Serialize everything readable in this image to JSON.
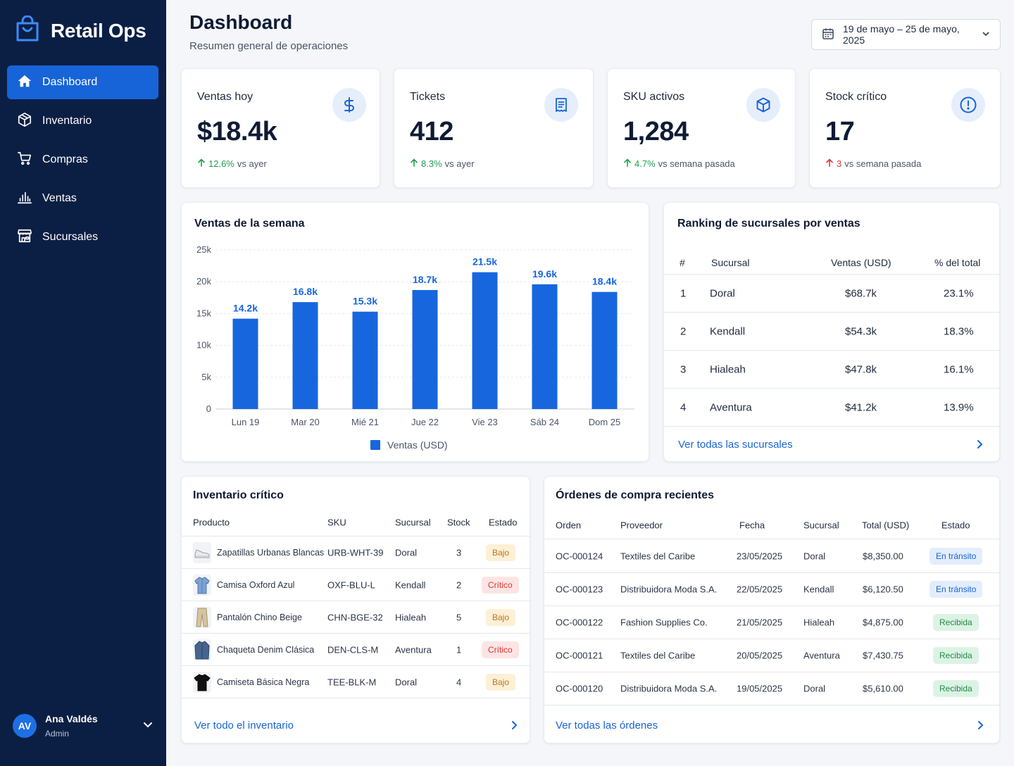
{
  "app": {
    "name": "Retail Ops"
  },
  "sidebar": {
    "items": [
      {
        "label": "Dashboard",
        "icon": "home-icon",
        "active": true
      },
      {
        "label": "Inventario",
        "icon": "box-icon",
        "active": false
      },
      {
        "label": "Compras",
        "icon": "cart-icon",
        "active": false
      },
      {
        "label": "Ventas",
        "icon": "bar-chart-icon",
        "active": false
      },
      {
        "label": "Sucursales",
        "icon": "store-icon",
        "active": false
      }
    ],
    "user": {
      "initials": "AV",
      "name": "Ana Valdés",
      "role": "Admin"
    }
  },
  "header": {
    "title": "Dashboard",
    "subtitle": "Resumen general de operaciones",
    "date_range": "19 de mayo – 25 de mayo, 2025"
  },
  "kpis": [
    {
      "label": "Ventas hoy",
      "value": "$18.4k",
      "delta": "12.6%",
      "delta_dir": "up",
      "compare": "vs ayer",
      "icon": "dollar-icon"
    },
    {
      "label": "Tickets",
      "value": "412",
      "delta": "8.3%",
      "delta_dir": "up",
      "compare": "vs ayer",
      "icon": "receipt-icon"
    },
    {
      "label": "SKU activos",
      "value": "1,284",
      "delta": "4.7%",
      "delta_dir": "up",
      "compare": "vs semana pasada",
      "icon": "cube-icon"
    },
    {
      "label": "Stock crítico",
      "value": "17",
      "delta": "3",
      "delta_dir": "up-red",
      "compare": "vs semana pasada",
      "icon": "alert-icon"
    }
  ],
  "sales_chart": {
    "title": "Ventas de la semana",
    "legend": "Ventas (USD)",
    "color": "#1766de"
  },
  "chart_data": {
    "type": "bar",
    "title": "Ventas de la semana",
    "categories": [
      "Lun 19",
      "Mar 20",
      "Mié 21",
      "Jue 22",
      "Vie 23",
      "Sáb 24",
      "Dom 25"
    ],
    "series": [
      {
        "name": "Ventas (USD)",
        "values": [
          14200,
          16800,
          15300,
          18700,
          21500,
          19600,
          18400
        ]
      }
    ],
    "data_labels": [
      "14.2k",
      "16.8k",
      "15.3k",
      "18.7k",
      "21.5k",
      "19.6k",
      "18.4k"
    ],
    "ylim": [
      0,
      25000
    ],
    "yticks": [
      0,
      5000,
      10000,
      15000,
      20000,
      25000
    ],
    "ytick_labels": [
      "0",
      "5k",
      "10k",
      "15k",
      "20k",
      "25k"
    ],
    "grid": true,
    "legend_position": "bottom"
  },
  "ranking": {
    "title": "Ranking de sucursales por ventas",
    "headers": [
      "#",
      "Sucursal",
      "Ventas (USD)",
      "% del total"
    ],
    "rows": [
      {
        "rank": "1",
        "branch": "Doral",
        "sales": "$68.7k",
        "pct": "23.1%"
      },
      {
        "rank": "2",
        "branch": "Kendall",
        "sales": "$54.3k",
        "pct": "18.3%"
      },
      {
        "rank": "3",
        "branch": "Hialeah",
        "sales": "$47.8k",
        "pct": "16.1%"
      },
      {
        "rank": "4",
        "branch": "Aventura",
        "sales": "$41.2k",
        "pct": "13.9%"
      }
    ],
    "link": "Ver todas las sucursales"
  },
  "inventory": {
    "title": "Inventario crítico",
    "headers": [
      "Producto",
      "SKU",
      "Sucursal",
      "Stock",
      "Estado"
    ],
    "rows": [
      {
        "product": "Zapatillas Urbanas Blancas",
        "sku": "URB-WHT-39",
        "branch": "Doral",
        "stock": "3",
        "status": "Bajo",
        "status_type": "bajo",
        "thumb": "sneaker-icon"
      },
      {
        "product": "Camisa Oxford Azul",
        "sku": "OXF-BLU-L",
        "branch": "Kendall",
        "stock": "2",
        "status": "Crítico",
        "status_type": "critico",
        "thumb": "shirt-icon"
      },
      {
        "product": "Pantalón Chino Beige",
        "sku": "CHN-BGE-32",
        "branch": "Hialeah",
        "stock": "5",
        "status": "Bajo",
        "status_type": "bajo",
        "thumb": "pants-icon"
      },
      {
        "product": "Chaqueta Denim Clásica",
        "sku": "DEN-CLS-M",
        "branch": "Aventura",
        "stock": "1",
        "status": "Crítico",
        "status_type": "critico",
        "thumb": "jacket-icon"
      },
      {
        "product": "Camiseta Básica Negra",
        "sku": "TEE-BLK-M",
        "branch": "Doral",
        "stock": "4",
        "status": "Bajo",
        "status_type": "bajo",
        "thumb": "tshirt-icon"
      }
    ],
    "link": "Ver todo el inventario"
  },
  "orders": {
    "title": "Órdenes de compra recientes",
    "headers": [
      "Orden",
      "Proveedor",
      "Fecha",
      "Sucursal",
      "Total (USD)",
      "Estado"
    ],
    "rows": [
      {
        "order": "OC-000124",
        "supplier": "Textiles del Caribe",
        "date": "23/05/2025",
        "branch": "Doral",
        "total": "$8,350.00",
        "status": "En tránsito",
        "status_type": "transito"
      },
      {
        "order": "OC-000123",
        "supplier": "Distribuidora Moda S.A.",
        "date": "22/05/2025",
        "branch": "Kendall",
        "total": "$6,120.50",
        "status": "En tránsito",
        "status_type": "transito"
      },
      {
        "order": "OC-000122",
        "supplier": "Fashion Supplies Co.",
        "date": "21/05/2025",
        "branch": "Hialeah",
        "total": "$4,875.00",
        "status": "Recibida",
        "status_type": "recibida"
      },
      {
        "order": "OC-000121",
        "supplier": "Textiles del Caribe",
        "date": "20/05/2025",
        "branch": "Aventura",
        "total": "$7,430.75",
        "status": "Recibida",
        "status_type": "recibida"
      },
      {
        "order": "OC-000120",
        "supplier": "Distribuidora Moda S.A.",
        "date": "19/05/2025",
        "branch": "Doral",
        "total": "$5,610.00",
        "status": "Recibida",
        "status_type": "recibida"
      }
    ],
    "link": "Ver todas las órdenes"
  },
  "colors": {
    "sidebar_bg": "#0b1f44",
    "accent": "#1764d8",
    "positive": "#1f9e4d",
    "negative": "#d93636"
  }
}
